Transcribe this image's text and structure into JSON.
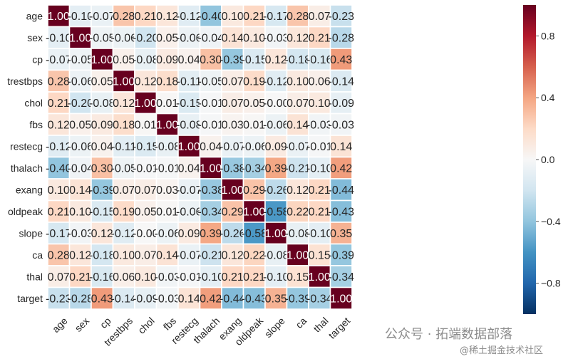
{
  "chart_data": {
    "type": "heatmap",
    "title": "",
    "variables": [
      "age",
      "sex",
      "cp",
      "trestbps",
      "chol",
      "fbs",
      "restecg",
      "thalach",
      "exang",
      "oldpeak",
      "slope",
      "ca",
      "thal",
      "target"
    ],
    "matrix": [
      [
        1.0,
        -0.1,
        -0.07,
        0.28,
        0.21,
        0.12,
        -0.12,
        -0.4,
        0.1,
        0.21,
        -0.17,
        0.28,
        0.07,
        -0.23
      ],
      [
        -0.1,
        1.0,
        -0.05,
        -0.06,
        -0.2,
        0.05,
        -0.06,
        -0.04,
        0.14,
        0.1,
        -0.03,
        0.12,
        0.21,
        -0.28
      ],
      [
        -0.07,
        -0.05,
        1.0,
        0.05,
        -0.08,
        0.09,
        0.04,
        0.3,
        -0.39,
        -0.15,
        0.12,
        -0.18,
        -0.16,
        0.43
      ],
      [
        0.28,
        -0.06,
        0.05,
        1.0,
        0.12,
        0.18,
        -0.11,
        -0.05,
        0.07,
        0.19,
        -0.12,
        0.1,
        0.06,
        -0.14
      ],
      [
        0.21,
        -0.2,
        -0.08,
        0.12,
        1.0,
        0.01,
        -0.15,
        -0.01,
        0.07,
        0.05,
        -0.0,
        0.07,
        0.1,
        -0.09
      ],
      [
        0.12,
        0.05,
        0.09,
        0.18,
        0.01,
        1.0,
        -0.08,
        -0.01,
        0.03,
        0.01,
        -0.06,
        0.14,
        -0.03,
        -0.03
      ],
      [
        -0.12,
        -0.06,
        0.04,
        -0.11,
        -0.15,
        -0.08,
        1.0,
        0.04,
        -0.07,
        -0.06,
        0.09,
        -0.07,
        -0.01,
        0.14
      ],
      [
        -0.4,
        -0.04,
        0.3,
        -0.05,
        -0.01,
        -0.01,
        0.04,
        1.0,
        -0.38,
        -0.34,
        0.39,
        -0.21,
        -0.1,
        0.42
      ],
      [
        0.1,
        0.14,
        -0.39,
        0.07,
        0.07,
        0.03,
        -0.07,
        -0.38,
        1.0,
        0.29,
        -0.26,
        0.12,
        0.21,
        -0.44
      ],
      [
        0.21,
        0.1,
        -0.15,
        0.19,
        0.05,
        0.01,
        -0.06,
        -0.34,
        0.29,
        1.0,
        -0.58,
        0.22,
        0.21,
        -0.43
      ],
      [
        -0.17,
        -0.03,
        0.12,
        -0.12,
        -0.0,
        -0.06,
        0.09,
        0.39,
        -0.26,
        -0.58,
        1.0,
        -0.08,
        -0.1,
        0.35
      ],
      [
        0.28,
        0.12,
        -0.18,
        0.1,
        0.07,
        0.14,
        -0.07,
        -0.21,
        0.12,
        0.22,
        -0.08,
        1.0,
        0.15,
        -0.39
      ],
      [
        0.07,
        0.21,
        -0.16,
        0.06,
        0.1,
        -0.03,
        -0.01,
        -0.1,
        0.21,
        0.21,
        -0.1,
        0.15,
        1.0,
        -0.34
      ],
      [
        -0.23,
        -0.28,
        0.43,
        -0.14,
        -0.09,
        -0.03,
        0.14,
        0.42,
        -0.44,
        -0.43,
        0.35,
        -0.39,
        -0.34,
        1.0
      ]
    ],
    "value_format": "2 decimals",
    "vmin": -1.0,
    "vmax": 1.0,
    "colormap": "RdBu_r",
    "colorbar": {
      "ticks": [
        -0.8,
        -0.4,
        0.0,
        0.4,
        0.8
      ],
      "tick_labels": [
        "−0.8",
        "−0.4",
        "0.0",
        "0.4",
        "0.8"
      ],
      "position": "right"
    },
    "xlabel": "",
    "ylabel": "",
    "grid_lines": "white"
  },
  "watermark": {
    "line1": "公众号 · 拓端数据部落",
    "line2": "@稀土掘金技术社区"
  }
}
